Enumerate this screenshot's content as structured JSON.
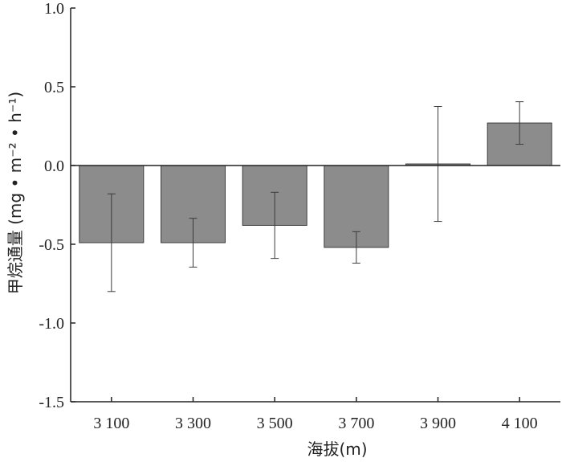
{
  "chart_data": {
    "type": "bar",
    "title": "",
    "xlabel": "海拔(m)",
    "ylabel_main": "甲烷通量",
    "ylabel_units": "(mg • m⁻² • h⁻¹)",
    "categories": [
      "3 100",
      "3 300",
      "3 500",
      "3 700",
      "3 900",
      "4 100"
    ],
    "values": [
      -0.49,
      -0.49,
      -0.38,
      -0.52,
      0.01,
      0.27
    ],
    "errors": [
      0.31,
      0.155,
      0.21,
      0.1,
      0.365,
      0.135
    ],
    "ylim": [
      -1.5,
      1.0
    ],
    "yticks": [
      "1.0",
      "0.5",
      "0.0",
      "-0.5",
      "-1.0",
      "-1.5"
    ],
    "ytick_values": [
      1.0,
      0.5,
      0.0,
      -0.5,
      -1.0,
      -1.5
    ],
    "grid": false,
    "bar_color": "#8c8c8c",
    "bar_edge_color": "#3a3a3a",
    "axis_color": "#222222"
  }
}
